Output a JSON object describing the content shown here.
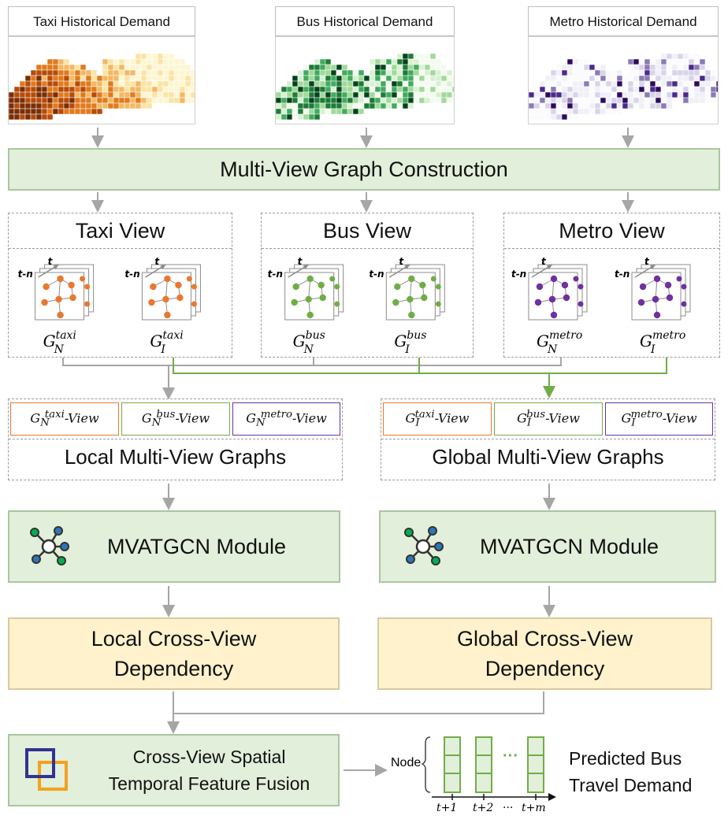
{
  "maps": [
    {
      "label": "Taxi Historical Demand",
      "palette": [
        "#7a2e02",
        "#b84a06",
        "#e07a1c",
        "#f3b863",
        "#fbe3a4",
        "#fdf6d3"
      ]
    },
    {
      "label": "Bus Historical Demand",
      "palette": [
        "#00441b",
        "#1d7c36",
        "#41ab5d",
        "#a1d99b",
        "#d9f0d3",
        "#f3fbef"
      ]
    },
    {
      "label": "Metro Historical Demand",
      "palette": [
        "#2d0a5e",
        "#4b2a8c",
        "#8c7ab6",
        "#d8d4e8",
        "#f1eff7",
        "#fbfbfe"
      ]
    }
  ],
  "construction": "Multi-View Graph Construction",
  "views": [
    {
      "title": "Taxi View",
      "color": "#e8782f",
      "sup": "taxi"
    },
    {
      "title": "Bus View",
      "color": "#70ad47",
      "sup": "bus"
    },
    {
      "title": "Metro View",
      "color": "#7030a0",
      "sup": "metro"
    }
  ],
  "time_labels": {
    "t": "t",
    "tn": "t-n"
  },
  "graph_subscripts": {
    "local": "N",
    "global": "I"
  },
  "view_suffix": "-View",
  "local_title": "Local Multi-View Graphs",
  "global_title": "Global Multi-View Graphs",
  "module_label": "MVATGCN Module",
  "local_dependency": [
    "Local Cross-View",
    "Dependency"
  ],
  "global_dependency": [
    "Global Cross-View",
    "Dependency"
  ],
  "fusion_label": [
    "Cross-View Spatial",
    "Temporal Feature Fusion"
  ],
  "output": {
    "node_label": "Node",
    "ticks": [
      "t+1",
      "t+2",
      "···",
      "t+m"
    ],
    "ellipsis": "···",
    "predicted_label": [
      "Predicted Bus",
      "Travel Demand"
    ]
  },
  "colors": {
    "arrow_gray": "#a6a6a6",
    "arrow_green": "#70ad47",
    "green_fill": "#e2efda",
    "yellow_fill": "#fff2cc",
    "module_blue": "#2e75b6",
    "module_green": "#00b050"
  }
}
